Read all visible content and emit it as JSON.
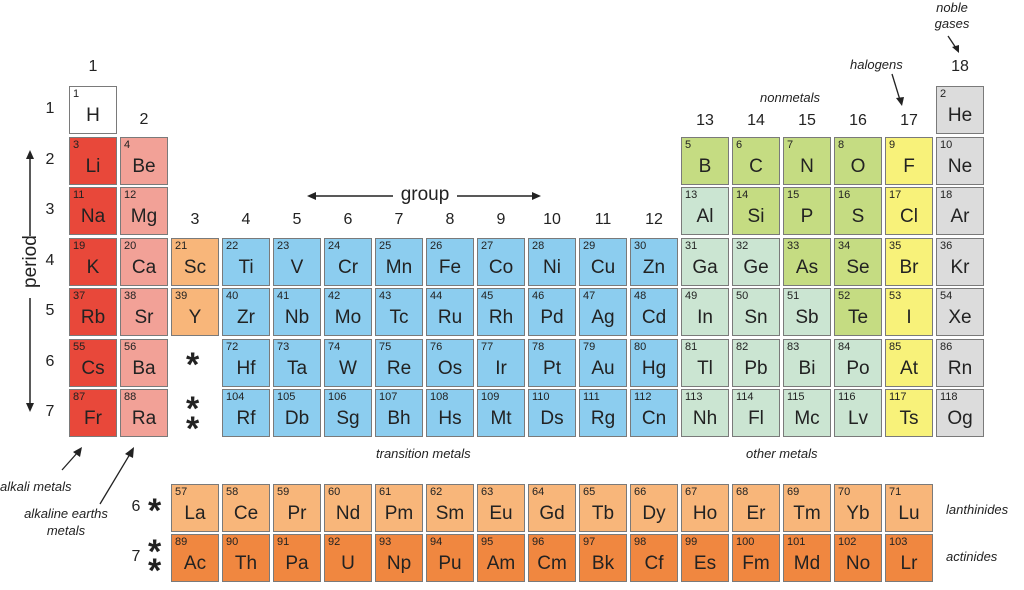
{
  "colors": {
    "alkali": "#e8483a",
    "alkaline": "#f2a197",
    "sc_y": "#f8b67a",
    "transition": "#8ccdef",
    "nonmetal_green": "#c5dc82",
    "other_metal": "#cbe5d2",
    "halogen": "#f8f27a",
    "noble": "#dcdcdc",
    "lanthanide": "#f8b67a",
    "actinide": "#f08740",
    "hydrogen": "#ffffff"
  },
  "groups": [
    "1",
    "2",
    "3",
    "4",
    "5",
    "6",
    "7",
    "8",
    "9",
    "10",
    "11",
    "12",
    "13",
    "14",
    "15",
    "16",
    "17",
    "18"
  ],
  "periods": [
    "1",
    "2",
    "3",
    "4",
    "5",
    "6",
    "7"
  ],
  "f_periods": [
    "6",
    "7"
  ],
  "labels": {
    "group": "group",
    "period": "period",
    "nonmetals": "nonmetals",
    "halogens": "halogens",
    "noble_gases": "noble\ngases",
    "transition_metals": "transition metals",
    "other_metals": "other metals",
    "alkali_metals": "alkali metals",
    "alkaline_earths": "alkaline earths\nmetals",
    "lanthinides": "lanthinides",
    "actinides": "actinides",
    "star1": "*",
    "star2": "**"
  },
  "elements": [
    [
      "1",
      "H",
      1,
      1,
      "hydrogen"
    ],
    [
      "2",
      "He",
      1,
      18,
      "noble"
    ],
    [
      "3",
      "Li",
      2,
      1,
      "alkali"
    ],
    [
      "4",
      "Be",
      2,
      2,
      "alkaline"
    ],
    [
      "5",
      "B",
      2,
      13,
      "nonmetal_green"
    ],
    [
      "6",
      "C",
      2,
      14,
      "nonmetal_green"
    ],
    [
      "7",
      "N",
      2,
      15,
      "nonmetal_green"
    ],
    [
      "8",
      "O",
      2,
      16,
      "nonmetal_green"
    ],
    [
      "9",
      "F",
      2,
      17,
      "halogen"
    ],
    [
      "10",
      "Ne",
      2,
      18,
      "noble"
    ],
    [
      "11",
      "Na",
      3,
      1,
      "alkali"
    ],
    [
      "12",
      "Mg",
      3,
      2,
      "alkaline"
    ],
    [
      "13",
      "Al",
      3,
      13,
      "other_metal"
    ],
    [
      "14",
      "Si",
      3,
      14,
      "nonmetal_green"
    ],
    [
      "15",
      "P",
      3,
      15,
      "nonmetal_green"
    ],
    [
      "16",
      "S",
      3,
      16,
      "nonmetal_green"
    ],
    [
      "17",
      "Cl",
      3,
      17,
      "halogen"
    ],
    [
      "18",
      "Ar",
      3,
      18,
      "noble"
    ],
    [
      "19",
      "K",
      4,
      1,
      "alkali"
    ],
    [
      "20",
      "Ca",
      4,
      2,
      "alkaline"
    ],
    [
      "21",
      "Sc",
      4,
      3,
      "sc_y"
    ],
    [
      "22",
      "Ti",
      4,
      4,
      "transition"
    ],
    [
      "23",
      "V",
      4,
      5,
      "transition"
    ],
    [
      "24",
      "Cr",
      4,
      6,
      "transition"
    ],
    [
      "25",
      "Mn",
      4,
      7,
      "transition"
    ],
    [
      "26",
      "Fe",
      4,
      8,
      "transition"
    ],
    [
      "27",
      "Co",
      4,
      9,
      "transition"
    ],
    [
      "28",
      "Ni",
      4,
      10,
      "transition"
    ],
    [
      "29",
      "Cu",
      4,
      11,
      "transition"
    ],
    [
      "30",
      "Zn",
      4,
      12,
      "transition"
    ],
    [
      "31",
      "Ga",
      4,
      13,
      "other_metal"
    ],
    [
      "32",
      "Ge",
      4,
      14,
      "other_metal"
    ],
    [
      "33",
      "As",
      4,
      15,
      "nonmetal_green"
    ],
    [
      "34",
      "Se",
      4,
      16,
      "nonmetal_green"
    ],
    [
      "35",
      "Br",
      4,
      17,
      "halogen"
    ],
    [
      "36",
      "Kr",
      4,
      18,
      "noble"
    ],
    [
      "37",
      "Rb",
      5,
      1,
      "alkali"
    ],
    [
      "38",
      "Sr",
      5,
      2,
      "alkaline"
    ],
    [
      "39",
      "Y",
      5,
      3,
      "sc_y"
    ],
    [
      "40",
      "Zr",
      5,
      4,
      "transition"
    ],
    [
      "41",
      "Nb",
      5,
      5,
      "transition"
    ],
    [
      "42",
      "Mo",
      5,
      6,
      "transition"
    ],
    [
      "43",
      "Tc",
      5,
      7,
      "transition"
    ],
    [
      "44",
      "Ru",
      5,
      8,
      "transition"
    ],
    [
      "45",
      "Rh",
      5,
      9,
      "transition"
    ],
    [
      "46",
      "Pd",
      5,
      10,
      "transition"
    ],
    [
      "47",
      "Ag",
      5,
      11,
      "transition"
    ],
    [
      "48",
      "Cd",
      5,
      12,
      "transition"
    ],
    [
      "49",
      "In",
      5,
      13,
      "other_metal"
    ],
    [
      "50",
      "Sn",
      5,
      14,
      "other_metal"
    ],
    [
      "51",
      "Sb",
      5,
      15,
      "other_metal"
    ],
    [
      "52",
      "Te",
      5,
      16,
      "nonmetal_green"
    ],
    [
      "53",
      "I",
      5,
      17,
      "halogen"
    ],
    [
      "54",
      "Xe",
      5,
      18,
      "noble"
    ],
    [
      "55",
      "Cs",
      6,
      1,
      "alkali"
    ],
    [
      "56",
      "Ba",
      6,
      2,
      "alkaline"
    ],
    [
      "72",
      "Hf",
      6,
      4,
      "transition"
    ],
    [
      "73",
      "Ta",
      6,
      5,
      "transition"
    ],
    [
      "74",
      "W",
      6,
      6,
      "transition"
    ],
    [
      "75",
      "Re",
      6,
      7,
      "transition"
    ],
    [
      "76",
      "Os",
      6,
      8,
      "transition"
    ],
    [
      "77",
      "Ir",
      6,
      9,
      "transition"
    ],
    [
      "78",
      "Pt",
      6,
      10,
      "transition"
    ],
    [
      "79",
      "Au",
      6,
      11,
      "transition"
    ],
    [
      "80",
      "Hg",
      6,
      12,
      "transition"
    ],
    [
      "81",
      "Tl",
      6,
      13,
      "other_metal"
    ],
    [
      "82",
      "Pb",
      6,
      14,
      "other_metal"
    ],
    [
      "83",
      "Bi",
      6,
      15,
      "other_metal"
    ],
    [
      "84",
      "Po",
      6,
      16,
      "other_metal"
    ],
    [
      "85",
      "At",
      6,
      17,
      "halogen"
    ],
    [
      "86",
      "Rn",
      6,
      18,
      "noble"
    ],
    [
      "87",
      "Fr",
      7,
      1,
      "alkali"
    ],
    [
      "88",
      "Ra",
      7,
      2,
      "alkaline"
    ],
    [
      "104",
      "Rf",
      7,
      4,
      "transition"
    ],
    [
      "105",
      "Db",
      7,
      5,
      "transition"
    ],
    [
      "106",
      "Sg",
      7,
      6,
      "transition"
    ],
    [
      "107",
      "Bh",
      7,
      7,
      "transition"
    ],
    [
      "108",
      "Hs",
      7,
      8,
      "transition"
    ],
    [
      "109",
      "Mt",
      7,
      9,
      "transition"
    ],
    [
      "110",
      "Ds",
      7,
      10,
      "transition"
    ],
    [
      "111",
      "Rg",
      7,
      11,
      "transition"
    ],
    [
      "112",
      "Cn",
      7,
      12,
      "transition"
    ],
    [
      "113",
      "Nh",
      7,
      13,
      "other_metal"
    ],
    [
      "114",
      "Fl",
      7,
      14,
      "other_metal"
    ],
    [
      "115",
      "Mc",
      7,
      15,
      "other_metal"
    ],
    [
      "116",
      "Lv",
      7,
      16,
      "other_metal"
    ],
    [
      "117",
      "Ts",
      7,
      17,
      "halogen"
    ],
    [
      "118",
      "Og",
      7,
      18,
      "noble"
    ]
  ],
  "lanthanides": [
    [
      "57",
      "La"
    ],
    [
      "58",
      "Ce"
    ],
    [
      "59",
      "Pr"
    ],
    [
      "60",
      "Nd"
    ],
    [
      "61",
      "Pm"
    ],
    [
      "62",
      "Sm"
    ],
    [
      "63",
      "Eu"
    ],
    [
      "64",
      "Gd"
    ],
    [
      "65",
      "Tb"
    ],
    [
      "66",
      "Dy"
    ],
    [
      "67",
      "Ho"
    ],
    [
      "68",
      "Er"
    ],
    [
      "69",
      "Tm"
    ],
    [
      "70",
      "Yb"
    ],
    [
      "71",
      "Lu"
    ]
  ],
  "actinides": [
    [
      "89",
      "Ac"
    ],
    [
      "90",
      "Th"
    ],
    [
      "91",
      "Pa"
    ],
    [
      "92",
      "U"
    ],
    [
      "93",
      "Np"
    ],
    [
      "94",
      "Pu"
    ],
    [
      "95",
      "Am"
    ],
    [
      "96",
      "Cm"
    ],
    [
      "97",
      "Bk"
    ],
    [
      "98",
      "Cf"
    ],
    [
      "99",
      "Es"
    ],
    [
      "100",
      "Fm"
    ],
    [
      "101",
      "Md"
    ],
    [
      "102",
      "No"
    ],
    [
      "103",
      "Lr"
    ]
  ]
}
